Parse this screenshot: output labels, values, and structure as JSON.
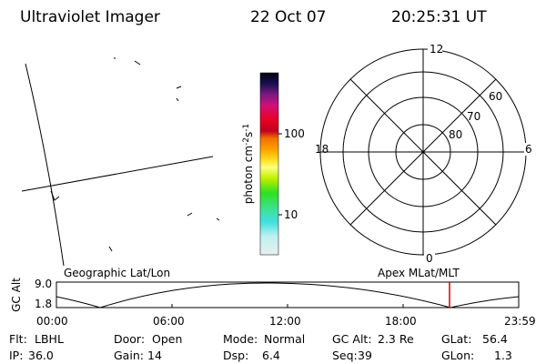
{
  "header": {
    "title": "Ultraviolet Imager",
    "date": "22 Oct 07",
    "time": "20:25:31 UT"
  },
  "colorbar": {
    "ticks": [
      "100",
      "10"
    ],
    "label": [
      "photon cm",
      "-2",
      "s",
      "-1"
    ]
  },
  "polar": {
    "mlt_labels": [
      "12",
      "6",
      "0",
      "18"
    ],
    "lat_labels": [
      "60",
      "70",
      "80"
    ]
  },
  "strip": {
    "left_label": "Geographic Lat/Lon",
    "right_label": "Apex MLat/MLT",
    "y_label": "GC Alt",
    "y_ticks": [
      "9.0",
      "1.8"
    ],
    "x_ticks": [
      "00:00",
      "06:00",
      "12:00",
      "18:00",
      "23:59"
    ]
  },
  "footer": [
    [
      {
        "label": "Flt:",
        "value": "LBHL"
      },
      {
        "label": "Door:",
        "value": "Open"
      },
      {
        "label": "Mode:",
        "value": "Normal"
      },
      {
        "label": "GC Alt:",
        "value": "2.3 Re"
      },
      {
        "label": "GLat:",
        "value": "56.4"
      }
    ],
    [
      {
        "label": "IP:",
        "value": "36.0"
      },
      {
        "label": "Gain:",
        "value": "14"
      },
      {
        "label": "Dsp:",
        "value": "6.4"
      },
      {
        "label": "Seq:",
        "value": "39"
      },
      {
        "label": "GLon:",
        "value": "1.3"
      }
    ]
  ]
}
